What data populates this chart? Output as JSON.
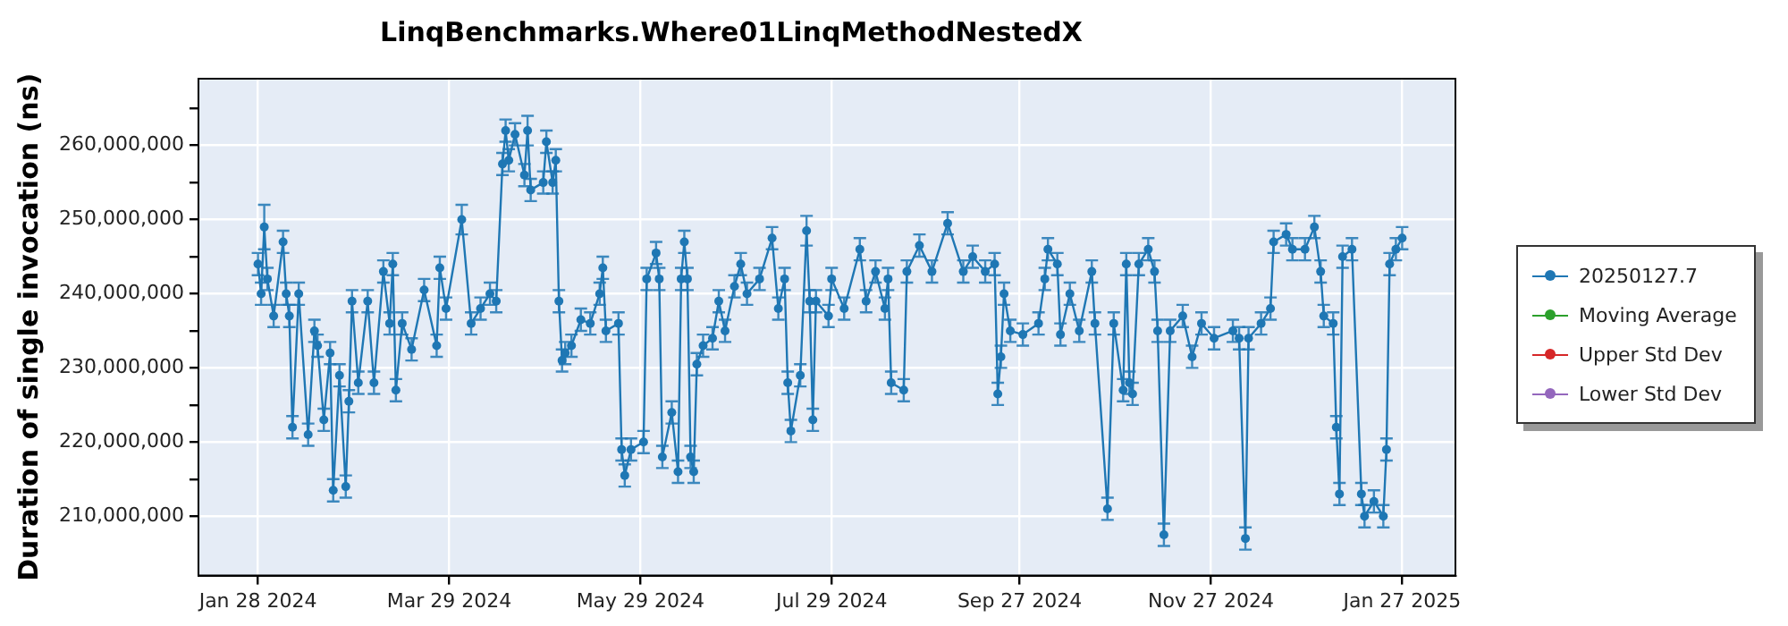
{
  "chart_data": {
    "type": "line",
    "title": "LinqBenchmarks.Where01LinqMethodNestedX",
    "ylabel": "Duration of single invocation (ns)",
    "xlim": [
      "2024-01-09",
      "2025-02-13"
    ],
    "xticks": [
      {
        "value": "2024-01-28",
        "label": "Jan 28 2024"
      },
      {
        "value": "2024-03-29",
        "label": "Mar 29 2024"
      },
      {
        "value": "2024-05-29",
        "label": "May 29 2024"
      },
      {
        "value": "2024-07-29",
        "label": "Jul 29 2024"
      },
      {
        "value": "2024-09-27",
        "label": "Sep 27 2024"
      },
      {
        "value": "2024-11-27",
        "label": "Nov 27 2024"
      },
      {
        "value": "2025-01-27",
        "label": "Jan 27 2025"
      }
    ],
    "ylim": [
      202000000,
      269000000
    ],
    "yticks": [
      {
        "value": 210000000,
        "label": "210,000,000"
      },
      {
        "value": 215000000,
        "label": null
      },
      {
        "value": 220000000,
        "label": "220,000,000"
      },
      {
        "value": 225000000,
        "label": null
      },
      {
        "value": 230000000,
        "label": "230,000,000"
      },
      {
        "value": 235000000,
        "label": null
      },
      {
        "value": 240000000,
        "label": "240,000,000"
      },
      {
        "value": 245000000,
        "label": null
      },
      {
        "value": 250000000,
        "label": "250,000,000"
      },
      {
        "value": 255000000,
        "label": null
      },
      {
        "value": 260000000,
        "label": "260,000,000"
      },
      {
        "value": 265000000,
        "label": null
      }
    ],
    "grid": true,
    "legend": "right",
    "marker": "circle",
    "line_style": "solid",
    "x": [
      "2024-01-28",
      "2024-01-29",
      "2024-01-30",
      "2024-01-31",
      "2024-02-02",
      "2024-02-05",
      "2024-02-06",
      "2024-02-07",
      "2024-02-08",
      "2024-02-10",
      "2024-02-13",
      "2024-02-15",
      "2024-02-16",
      "2024-02-18",
      "2024-02-20",
      "2024-02-21",
      "2024-02-23",
      "2024-02-25",
      "2024-02-26",
      "2024-02-27",
      "2024-02-29",
      "2024-03-03",
      "2024-03-05",
      "2024-03-08",
      "2024-03-10",
      "2024-03-11",
      "2024-03-12",
      "2024-03-14",
      "2024-03-17",
      "2024-03-21",
      "2024-03-25",
      "2024-03-26",
      "2024-03-28",
      "2024-04-02",
      "2024-04-05",
      "2024-04-08",
      "2024-04-11",
      "2024-04-13",
      "2024-04-15",
      "2024-04-16",
      "2024-04-17",
      "2024-04-19",
      "2024-04-22",
      "2024-04-23",
      "2024-04-24",
      "2024-04-28",
      "2024-04-29",
      "2024-05-01",
      "2024-05-02",
      "2024-05-03",
      "2024-05-04",
      "2024-05-05",
      "2024-05-07",
      "2024-05-10",
      "2024-05-13",
      "2024-05-16",
      "2024-05-17",
      "2024-05-18",
      "2024-05-22",
      "2024-05-23",
      "2024-05-24",
      "2024-05-26",
      "2024-05-30",
      "2024-05-31",
      "2024-06-03",
      "2024-06-04",
      "2024-06-05",
      "2024-06-08",
      "2024-06-10",
      "2024-06-11",
      "2024-06-12",
      "2024-06-13",
      "2024-06-14",
      "2024-06-15",
      "2024-06-16",
      "2024-06-18",
      "2024-06-21",
      "2024-06-23",
      "2024-06-25",
      "2024-06-28",
      "2024-06-30",
      "2024-07-02",
      "2024-07-06",
      "2024-07-10",
      "2024-07-12",
      "2024-07-14",
      "2024-07-15",
      "2024-07-16",
      "2024-07-19",
      "2024-07-21",
      "2024-07-22",
      "2024-07-23",
      "2024-07-24",
      "2024-07-28",
      "2024-07-29",
      "2024-08-02",
      "2024-08-07",
      "2024-08-09",
      "2024-08-12",
      "2024-08-15",
      "2024-08-16",
      "2024-08-17",
      "2024-08-21",
      "2024-08-22",
      "2024-08-26",
      "2024-08-30",
      "2024-09-04",
      "2024-09-09",
      "2024-09-12",
      "2024-09-16",
      "2024-09-19",
      "2024-09-20",
      "2024-09-21",
      "2024-09-22",
      "2024-09-24",
      "2024-09-28",
      "2024-10-03",
      "2024-10-05",
      "2024-10-06",
      "2024-10-09",
      "2024-10-10",
      "2024-10-13",
      "2024-10-16",
      "2024-10-20",
      "2024-10-21",
      "2024-10-25",
      "2024-10-27",
      "2024-10-30",
      "2024-10-31",
      "2024-11-01",
      "2024-11-02",
      "2024-11-04",
      "2024-11-07",
      "2024-11-09",
      "2024-11-10",
      "2024-11-12",
      "2024-11-14",
      "2024-11-18",
      "2024-11-21",
      "2024-11-24",
      "2024-11-28",
      "2024-12-04",
      "2024-12-06",
      "2024-12-08",
      "2024-12-09",
      "2024-12-13",
      "2024-12-16",
      "2024-12-17",
      "2024-12-21",
      "2024-12-23",
      "2024-12-27",
      "2024-12-30",
      "2025-01-01",
      "2025-01-02",
      "2025-01-05",
      "2025-01-06",
      "2025-01-07",
      "2025-01-08",
      "2025-01-11",
      "2025-01-14",
      "2025-01-15",
      "2025-01-18",
      "2025-01-21",
      "2025-01-22",
      "2025-01-23",
      "2025-01-25",
      "2025-01-27"
    ],
    "series": [
      {
        "name": "20250127.7",
        "color": "#1f77b4",
        "values": [
          244000000,
          240000000,
          249000000,
          242000000,
          237000000,
          247000000,
          240000000,
          237000000,
          222000000,
          240000000,
          221000000,
          235000000,
          233000000,
          223000000,
          232000000,
          213500000,
          229000000,
          214000000,
          225500000,
          239000000,
          228000000,
          239000000,
          228000000,
          243000000,
          236000000,
          244000000,
          227000000,
          236000000,
          232500000,
          240500000,
          233000000,
          243500000,
          238000000,
          250000000,
          236000000,
          238000000,
          240000000,
          239000000,
          257500000,
          262000000,
          258000000,
          261500000,
          256000000,
          262000000,
          254000000,
          255000000,
          260500000,
          255000000,
          258000000,
          239000000,
          231000000,
          232000000,
          233000000,
          236500000,
          236000000,
          240000000,
          243500000,
          235000000,
          236000000,
          219000000,
          215500000,
          219000000,
          220000000,
          242000000,
          245500000,
          242000000,
          218000000,
          224000000,
          216000000,
          242000000,
          247000000,
          242000000,
          218000000,
          216000000,
          230500000,
          233000000,
          234000000,
          239000000,
          235000000,
          241000000,
          244000000,
          240000000,
          242000000,
          247500000,
          238000000,
          242000000,
          228000000,
          221500000,
          229000000,
          248500000,
          239000000,
          223000000,
          239000000,
          237000000,
          242000000,
          238000000,
          246000000,
          239000000,
          243000000,
          238000000,
          242000000,
          228000000,
          227000000,
          243000000,
          246500000,
          243000000,
          249500000,
          243000000,
          245000000,
          243000000,
          244000000,
          226500000,
          231500000,
          240000000,
          235000000,
          234500000,
          236000000,
          242000000,
          246000000,
          244000000,
          234500000,
          240000000,
          235000000,
          243000000,
          236000000,
          211000000,
          236000000,
          227000000,
          244000000,
          228000000,
          226500000,
          244000000,
          246000000,
          243000000,
          235000000,
          207500000,
          235000000,
          237000000,
          231500000,
          236000000,
          234000000,
          235000000,
          234000000,
          207000000,
          234000000,
          236000000,
          238000000,
          247000000,
          248000000,
          246000000,
          246000000,
          249000000,
          243000000,
          237000000,
          236000000,
          222000000,
          213000000,
          245000000,
          246000000,
          213000000,
          210000000,
          212000000,
          210000000,
          219000000,
          244000000,
          246000000,
          247500000
        ],
        "errors": [
          1500000,
          1500000,
          3000000,
          1500000,
          1500000,
          1500000,
          1500000,
          1500000,
          1500000,
          1500000,
          1500000,
          1500000,
          1500000,
          1500000,
          1500000,
          1500000,
          1500000,
          1500000,
          1500000,
          1500000,
          1500000,
          1500000,
          1500000,
          1500000,
          1500000,
          1500000,
          1500000,
          1500000,
          1500000,
          1500000,
          1500000,
          1500000,
          1500000,
          2000000,
          1500000,
          1500000,
          1500000,
          1500000,
          1500000,
          1500000,
          1500000,
          1500000,
          1500000,
          2000000,
          1500000,
          1500000,
          1500000,
          1500000,
          1500000,
          1500000,
          1500000,
          1500000,
          1500000,
          1500000,
          1500000,
          1500000,
          1500000,
          1500000,
          1500000,
          1500000,
          1500000,
          1500000,
          1500000,
          1500000,
          1500000,
          1500000,
          1500000,
          1500000,
          1500000,
          1500000,
          1500000,
          1500000,
          1500000,
          1500000,
          1500000,
          1500000,
          1500000,
          1500000,
          1500000,
          1500000,
          1500000,
          1500000,
          1500000,
          1500000,
          1500000,
          1500000,
          1500000,
          1500000,
          1500000,
          2000000,
          1500000,
          1500000,
          1500000,
          1500000,
          1500000,
          1500000,
          1500000,
          1500000,
          1500000,
          1500000,
          1500000,
          1500000,
          1500000,
          1500000,
          1500000,
          1500000,
          1500000,
          1500000,
          1500000,
          1500000,
          1500000,
          1500000,
          1500000,
          1500000,
          1500000,
          1500000,
          1500000,
          1500000,
          1500000,
          1500000,
          1500000,
          1500000,
          1500000,
          1500000,
          1500000,
          1500000,
          1500000,
          1500000,
          1500000,
          1500000,
          1500000,
          1500000,
          1500000,
          1500000,
          1500000,
          1500000,
          1500000,
          1500000,
          1500000,
          1500000,
          1500000,
          1500000,
          1500000,
          1500000,
          1500000,
          1500000,
          1500000,
          1500000,
          1500000,
          1500000,
          1500000,
          1500000,
          1500000,
          1500000,
          1500000,
          1500000,
          1500000,
          1500000,
          1500000,
          1500000,
          1500000,
          1500000,
          1500000,
          1500000,
          1500000,
          1500000,
          1500000
        ]
      },
      {
        "name": "Moving Average",
        "color": "#2ca02c",
        "values": [
          null,
          null,
          null,
          null,
          null,
          null,
          null,
          null,
          null,
          null,
          null,
          null,
          null,
          null,
          null,
          null,
          null,
          null,
          null,
          null,
          null,
          null,
          null,
          null,
          null,
          null,
          null,
          null,
          null,
          null,
          null,
          null,
          null,
          null,
          null,
          null,
          null,
          null,
          null,
          null,
          null,
          null,
          null,
          null,
          null,
          null,
          null,
          null,
          null,
          null,
          null,
          null,
          null,
          null,
          null,
          null,
          null,
          null,
          null,
          null,
          null,
          null,
          null,
          null,
          null,
          null,
          null,
          null,
          null,
          null,
          null,
          null,
          null,
          null,
          null,
          null,
          null,
          null,
          null,
          null,
          null,
          null,
          null,
          null,
          null,
          null,
          null,
          null,
          null,
          null,
          null,
          null,
          null,
          null,
          null,
          null,
          null,
          null,
          null,
          null,
          null,
          null,
          null,
          null,
          null,
          null,
          null,
          null,
          null,
          null,
          null,
          null,
          null,
          null,
          null,
          null,
          null,
          null,
          null,
          null,
          null,
          null,
          null,
          null,
          null,
          null,
          null,
          null,
          null,
          null,
          null,
          null,
          null,
          null,
          null,
          null,
          null,
          null,
          null,
          null,
          null,
          null,
          null,
          null,
          null,
          null,
          null,
          null,
          null,
          null,
          null,
          null,
          null,
          null,
          null,
          null,
          null,
          null,
          null,
          null,
          null,
          null,
          null,
          null,
          null,
          null,
          null
        ]
      },
      {
        "name": "Upper Std Dev",
        "color": "#d62728",
        "values": [
          null,
          null,
          null,
          null,
          null,
          null,
          null,
          null,
          null,
          null,
          null,
          null,
          null,
          null,
          null,
          null,
          null,
          null,
          null,
          null,
          null,
          null,
          null,
          null,
          null,
          null,
          null,
          null,
          null,
          null,
          null,
          null,
          null,
          null,
          null,
          null,
          null,
          null,
          null,
          null,
          null,
          null,
          null,
          null,
          null,
          null,
          null,
          null,
          null,
          null,
          null,
          null,
          null,
          null,
          null,
          null,
          null,
          null,
          null,
          null,
          null,
          null,
          null,
          null,
          null,
          null,
          null,
          null,
          null,
          null,
          null,
          null,
          null,
          null,
          null,
          null,
          null,
          null,
          null,
          null,
          null,
          null,
          null,
          null,
          null,
          null,
          null,
          null,
          null,
          null,
          null,
          null,
          null,
          null,
          null,
          null,
          null,
          null,
          null,
          null,
          null,
          null,
          null,
          null,
          null,
          null,
          null,
          null,
          null,
          null,
          null,
          null,
          null,
          null,
          null,
          null,
          null,
          null,
          null,
          null,
          null,
          null,
          null,
          null,
          null,
          null,
          null,
          null,
          null,
          null,
          null,
          null,
          null,
          null,
          null,
          null,
          null,
          null,
          null,
          null,
          null,
          null,
          null,
          null,
          null,
          null,
          null,
          null,
          null,
          null,
          null,
          null,
          null,
          null,
          null,
          null,
          null,
          null,
          null,
          null,
          null,
          null,
          null,
          null,
          null,
          null,
          null
        ]
      },
      {
        "name": "Lower Std Dev",
        "color": "#9467bd",
        "values": [
          null,
          null,
          null,
          null,
          null,
          null,
          null,
          null,
          null,
          null,
          null,
          null,
          null,
          null,
          null,
          null,
          null,
          null,
          null,
          null,
          null,
          null,
          null,
          null,
          null,
          null,
          null,
          null,
          null,
          null,
          null,
          null,
          null,
          null,
          null,
          null,
          null,
          null,
          null,
          null,
          null,
          null,
          null,
          null,
          null,
          null,
          null,
          null,
          null,
          null,
          null,
          null,
          null,
          null,
          null,
          null,
          null,
          null,
          null,
          null,
          null,
          null,
          null,
          null,
          null,
          null,
          null,
          null,
          null,
          null,
          null,
          null,
          null,
          null,
          null,
          null,
          null,
          null,
          null,
          null,
          null,
          null,
          null,
          null,
          null,
          null,
          null,
          null,
          null,
          null,
          null,
          null,
          null,
          null,
          null,
          null,
          null,
          null,
          null,
          null,
          null,
          null,
          null,
          null,
          null,
          null,
          null,
          null,
          null,
          null,
          null,
          null,
          null,
          null,
          null,
          null,
          null,
          null,
          null,
          null,
          null,
          null,
          null,
          null,
          null,
          null,
          null,
          null,
          null,
          null,
          null,
          null,
          null,
          null,
          null,
          null,
          null,
          null,
          null,
          null,
          null,
          null,
          null,
          null,
          null,
          null,
          null,
          null,
          null,
          null,
          null,
          null,
          null,
          null,
          null,
          null,
          null,
          null,
          null,
          null,
          null,
          null,
          null,
          null,
          null,
          null,
          null
        ]
      }
    ]
  }
}
